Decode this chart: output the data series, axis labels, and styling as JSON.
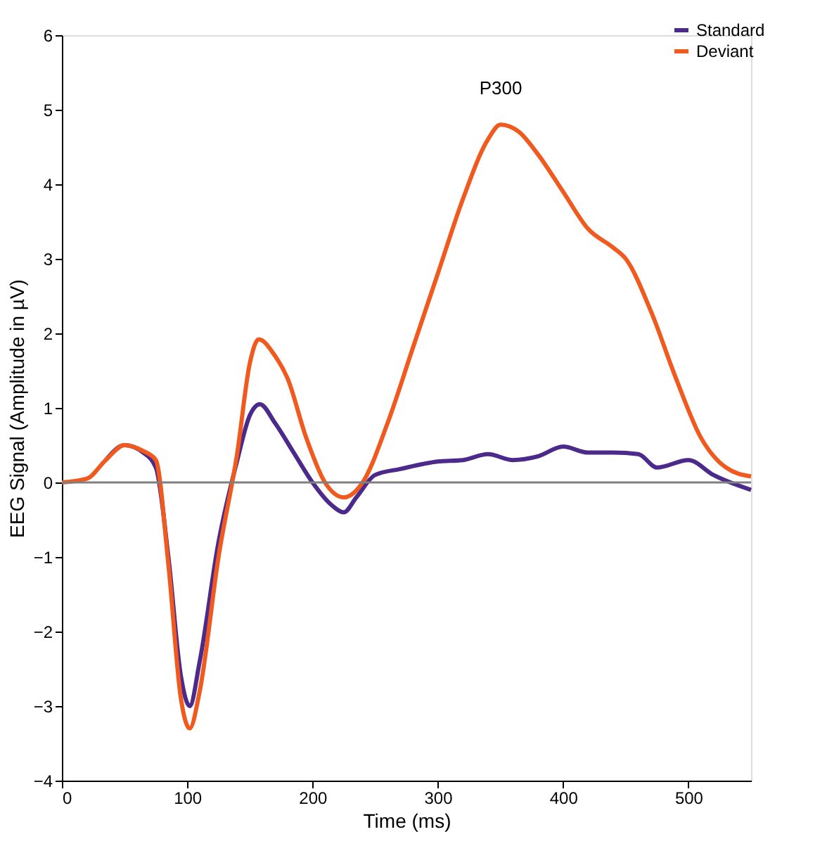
{
  "chart_data": {
    "type": "line",
    "xlabel": "Time (ms)",
    "ylabel": "EEG Signal (Amplitude in µV)",
    "xlim": [
      0,
      550
    ],
    "xticks": [
      0,
      100,
      200,
      300,
      400,
      500
    ],
    "ylim": [
      -4,
      6
    ],
    "yticks": [
      -4,
      -3,
      -2,
      -1,
      0,
      1,
      2,
      3,
      4,
      5,
      6
    ],
    "grid": false,
    "legend": "top right",
    "line_style": "solid",
    "ref_lines": [
      {
        "axis": "y",
        "value": 0,
        "color": "#808080"
      }
    ],
    "annotations": [
      "P300"
    ],
    "series": [
      {
        "name": "Standard",
        "color": "#4b2a8c",
        "x": [
          35,
          50,
          65,
          75,
          85,
          95,
          102,
          110,
          125,
          140,
          150,
          158,
          170,
          185,
          200,
          215,
          225,
          235,
          250,
          270,
          300,
          320,
          340,
          360,
          380,
          400,
          420,
          440,
          460,
          475,
          500,
          520,
          550
        ],
        "values": [
          0.3,
          0.5,
          0.4,
          0.2,
          -1.0,
          -2.6,
          -3.0,
          -2.4,
          -0.8,
          0.3,
          0.9,
          1.05,
          0.8,
          0.4,
          0,
          -0.3,
          -0.4,
          -0.2,
          0.1,
          0.18,
          0.28,
          0.3,
          0.38,
          0.3,
          0.35,
          0.48,
          0.4,
          0.4,
          0.38,
          0.2,
          0.3,
          0.1,
          -0.1
        ]
      },
      {
        "name": "Deviant",
        "color": "#f05a1e",
        "x": [
          0,
          20,
          35,
          50,
          65,
          75,
          85,
          95,
          102,
          110,
          125,
          140,
          150,
          157,
          170,
          180,
          195,
          210,
          225,
          240,
          260,
          280,
          300,
          320,
          340,
          350,
          365,
          380,
          400,
          420,
          440,
          450,
          470,
          490,
          510,
          530,
          550
        ],
        "values": [
          0,
          0.05,
          0.3,
          0.5,
          0.42,
          0.3,
          -1.1,
          -2.9,
          -3.3,
          -2.8,
          -1.0,
          0.4,
          1.6,
          1.92,
          1.7,
          1.4,
          0.6,
          0.0,
          -0.2,
          0,
          0.8,
          1.8,
          2.8,
          3.8,
          4.6,
          4.8,
          4.7,
          4.4,
          3.9,
          3.4,
          3.15,
          3.0,
          2.3,
          1.4,
          0.6,
          0.2,
          0.08
        ]
      }
    ]
  }
}
